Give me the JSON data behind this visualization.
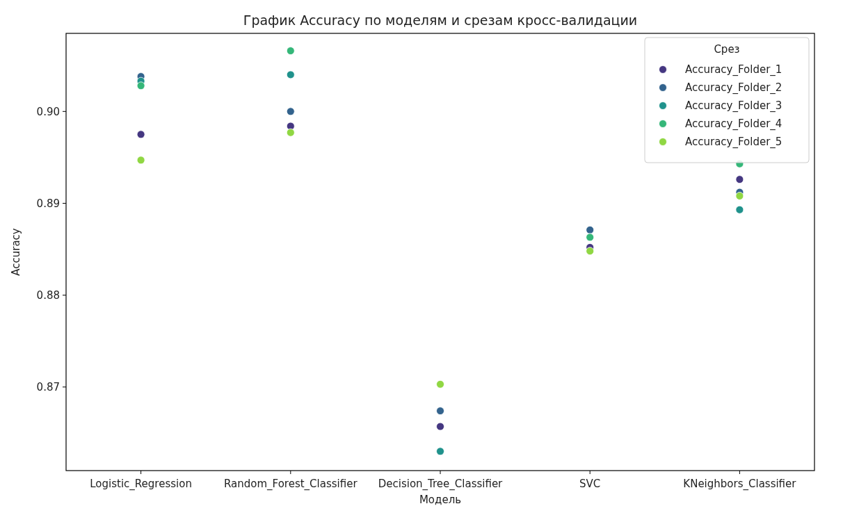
{
  "chart_data": {
    "type": "scatter",
    "title": "График Accuracy по моделям и срезам кросс-валидации",
    "xlabel": "Модель",
    "ylabel": "Accuracy",
    "legend_title": "Срез",
    "legend": "top right",
    "marker": "circle",
    "categories": [
      "Logistic_Regression",
      "Random_Forest_Classifier",
      "Decision_Tree_Classifier",
      "SVC",
      "KNeighbors_Classifier"
    ],
    "ylim": [
      0.8609,
      0.9085
    ],
    "yticks": [
      0.87,
      0.88,
      0.89,
      {
        "value": 0.9,
        "label": "0.90"
      }
    ],
    "series": [
      {
        "name": "Accuracy_Folder_1",
        "color": "#453781",
        "values": [
          0.8975,
          0.8984,
          0.8657,
          0.8852,
          0.8926
        ]
      },
      {
        "name": "Accuracy_Folder_2",
        "color": "#33638d",
        "values": [
          0.9038,
          0.9,
          0.8674,
          0.8871,
          0.8912
        ]
      },
      {
        "name": "Accuracy_Folder_3",
        "color": "#20928c",
        "values": [
          0.9033,
          0.904,
          0.863,
          null,
          0.8893
        ]
      },
      {
        "name": "Accuracy_Folder_4",
        "color": "#35b779",
        "values": [
          0.9028,
          0.9066,
          null,
          0.8863,
          0.8943
        ]
      },
      {
        "name": "Accuracy_Folder_5",
        "color": "#90d743",
        "values": [
          0.8947,
          0.8977,
          0.8703,
          0.8848,
          0.8908
        ]
      }
    ]
  }
}
